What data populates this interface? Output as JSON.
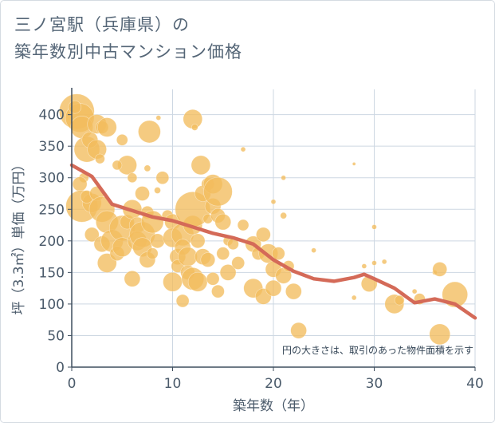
{
  "title": {
    "line1": "三ノ宮駅（兵庫県）の",
    "line2": "築年数別中古マンション価格"
  },
  "colors": {
    "bubble": "#f2bc5e",
    "line": "#d46a58",
    "grid": "#cdd7e2",
    "axis": "#3e4e5e"
  },
  "chart_data": {
    "type": "scatter",
    "xlabel": "築年数（年）",
    "ylabel": "坪（3.3㎡）単価（万円）",
    "xlim": [
      0,
      40
    ],
    "ylim": [
      0,
      440
    ],
    "xticks": [
      0,
      10,
      20,
      30,
      40
    ],
    "yticks": [
      0,
      50,
      100,
      150,
      200,
      250,
      300,
      350,
      400
    ],
    "note": "円の大きさは、取引のあった物件面積を示す",
    "series": [
      {
        "kind": "bubbles",
        "points": [
          [
            0.5,
            405,
            22
          ],
          [
            0.8,
            395,
            18
          ],
          [
            1.0,
            380,
            14
          ],
          [
            0.3,
            412,
            8
          ],
          [
            1.2,
            300,
            6
          ],
          [
            0.8,
            290,
            9
          ],
          [
            1.5,
            345,
            16
          ],
          [
            1.8,
            360,
            10
          ],
          [
            2.5,
            385,
            12
          ],
          [
            3.0,
            380,
            8
          ],
          [
            3.5,
            380,
            12
          ],
          [
            2.5,
            345,
            12
          ],
          [
            2.8,
            330,
            6
          ],
          [
            1.0,
            255,
            20
          ],
          [
            2.0,
            260,
            12
          ],
          [
            1.5,
            270,
            8
          ],
          [
            2.5,
            275,
            9
          ],
          [
            3.0,
            250,
            16
          ],
          [
            3.5,
            230,
            14
          ],
          [
            2.0,
            210,
            9
          ],
          [
            3.0,
            195,
            10
          ],
          [
            3.5,
            165,
            12
          ],
          [
            4.0,
            200,
            14
          ],
          [
            4.5,
            180,
            9
          ],
          [
            5.0,
            220,
            16
          ],
          [
            5.0,
            190,
            12
          ],
          [
            5.5,
            230,
            9
          ],
          [
            5.5,
            320,
            12
          ],
          [
            4.5,
            320,
            6
          ],
          [
            5.0,
            360,
            7
          ],
          [
            6.0,
            300,
            6
          ],
          [
            6.0,
            250,
            12
          ],
          [
            6.5,
            225,
            10
          ],
          [
            6.5,
            200,
            12
          ],
          [
            7.0,
            210,
            16
          ],
          [
            7.0,
            190,
            12
          ],
          [
            7.5,
            170,
            10
          ],
          [
            7.0,
            275,
            9
          ],
          [
            7.5,
            245,
            8
          ],
          [
            8.0,
            230,
            14
          ],
          [
            8.0,
            180,
            7
          ],
          [
            8.5,
            200,
            9
          ],
          [
            6.0,
            140,
            10
          ],
          [
            7.5,
            315,
            4
          ],
          [
            8.5,
            280,
            4
          ],
          [
            7.7,
            373,
            14
          ],
          [
            8.6,
            395,
            3
          ],
          [
            9.0,
            300,
            8
          ],
          [
            9.5,
            240,
            7
          ],
          [
            10.0,
            230,
            10
          ],
          [
            10.0,
            205,
            12
          ],
          [
            10.0,
            135,
            12
          ],
          [
            10.5,
            175,
            10
          ],
          [
            10.5,
            160,
            8
          ],
          [
            11.0,
            210,
            14
          ],
          [
            11.0,
            190,
            10
          ],
          [
            11.5,
            175,
            12
          ],
          [
            11.5,
            150,
            9
          ],
          [
            11.0,
            105,
            8
          ],
          [
            12.0,
            225,
            12
          ],
          [
            12.0,
            250,
            22
          ],
          [
            12.0,
            140,
            14
          ],
          [
            12.5,
            135,
            12
          ],
          [
            12.5,
            200,
            9
          ],
          [
            12.0,
            393,
            12
          ],
          [
            12.2,
            380,
            4
          ],
          [
            12.8,
            320,
            12
          ],
          [
            13.0,
            275,
            10
          ],
          [
            13.0,
            175,
            10
          ],
          [
            13.5,
            170,
            9
          ],
          [
            13.5,
            290,
            8
          ],
          [
            13.5,
            235,
            6
          ],
          [
            14.0,
            290,
            12
          ],
          [
            14.0,
            255,
            10
          ],
          [
            14.5,
            278,
            18
          ],
          [
            14.5,
            240,
            9
          ],
          [
            14.0,
            140,
            8
          ],
          [
            14.5,
            120,
            8
          ],
          [
            15.0,
            230,
            10
          ],
          [
            15.0,
            180,
            8
          ],
          [
            15.5,
            150,
            10
          ],
          [
            15.5,
            200,
            6
          ],
          [
            16.0,
            195,
            7
          ],
          [
            16.5,
            165,
            8
          ],
          [
            17.0,
            225,
            7
          ],
          [
            17.0,
            345,
            3
          ],
          [
            18.0,
            195,
            10
          ],
          [
            18.0,
            125,
            12
          ],
          [
            18.5,
            180,
            8
          ],
          [
            19.0,
            210,
            9
          ],
          [
            19.0,
            112,
            10
          ],
          [
            19.5,
            180,
            12
          ],
          [
            20.0,
            155,
            10
          ],
          [
            20.0,
            125,
            10
          ],
          [
            20.0,
            262,
            3
          ],
          [
            20.5,
            180,
            8
          ],
          [
            21.0,
            145,
            10
          ],
          [
            21.5,
            160,
            7
          ],
          [
            22.0,
            120,
            10
          ],
          [
            21.0,
            300,
            3
          ],
          [
            21.0,
            240,
            4
          ],
          [
            22.5,
            58,
            10
          ],
          [
            24.0,
            185,
            3
          ],
          [
            28.0,
            322,
            2
          ],
          [
            28.0,
            110,
            3
          ],
          [
            29.0,
            160,
            3
          ],
          [
            29.5,
            132,
            10
          ],
          [
            30.0,
            165,
            3
          ],
          [
            30.0,
            222,
            3
          ],
          [
            31.0,
            167,
            3
          ],
          [
            32.0,
            100,
            12
          ],
          [
            32.5,
            106,
            6
          ],
          [
            34.0,
            120,
            3
          ],
          [
            34.5,
            108,
            7
          ],
          [
            36.0,
            150,
            3
          ],
          [
            36.5,
            155,
            9
          ],
          [
            36.5,
            52,
            13
          ],
          [
            38.0,
            115,
            16
          ]
        ]
      },
      {
        "kind": "line",
        "points": [
          [
            0,
            320
          ],
          [
            2,
            302
          ],
          [
            4,
            258
          ],
          [
            6,
            248
          ],
          [
            8,
            238
          ],
          [
            10,
            232
          ],
          [
            12,
            222
          ],
          [
            14,
            212
          ],
          [
            16,
            205
          ],
          [
            18,
            195
          ],
          [
            20,
            170
          ],
          [
            22,
            152
          ],
          [
            24,
            140
          ],
          [
            26,
            136
          ],
          [
            28,
            142
          ],
          [
            29,
            147
          ],
          [
            30,
            140
          ],
          [
            32,
            125
          ],
          [
            34,
            102
          ],
          [
            36,
            108
          ],
          [
            38,
            100
          ],
          [
            40,
            78
          ]
        ]
      }
    ]
  }
}
